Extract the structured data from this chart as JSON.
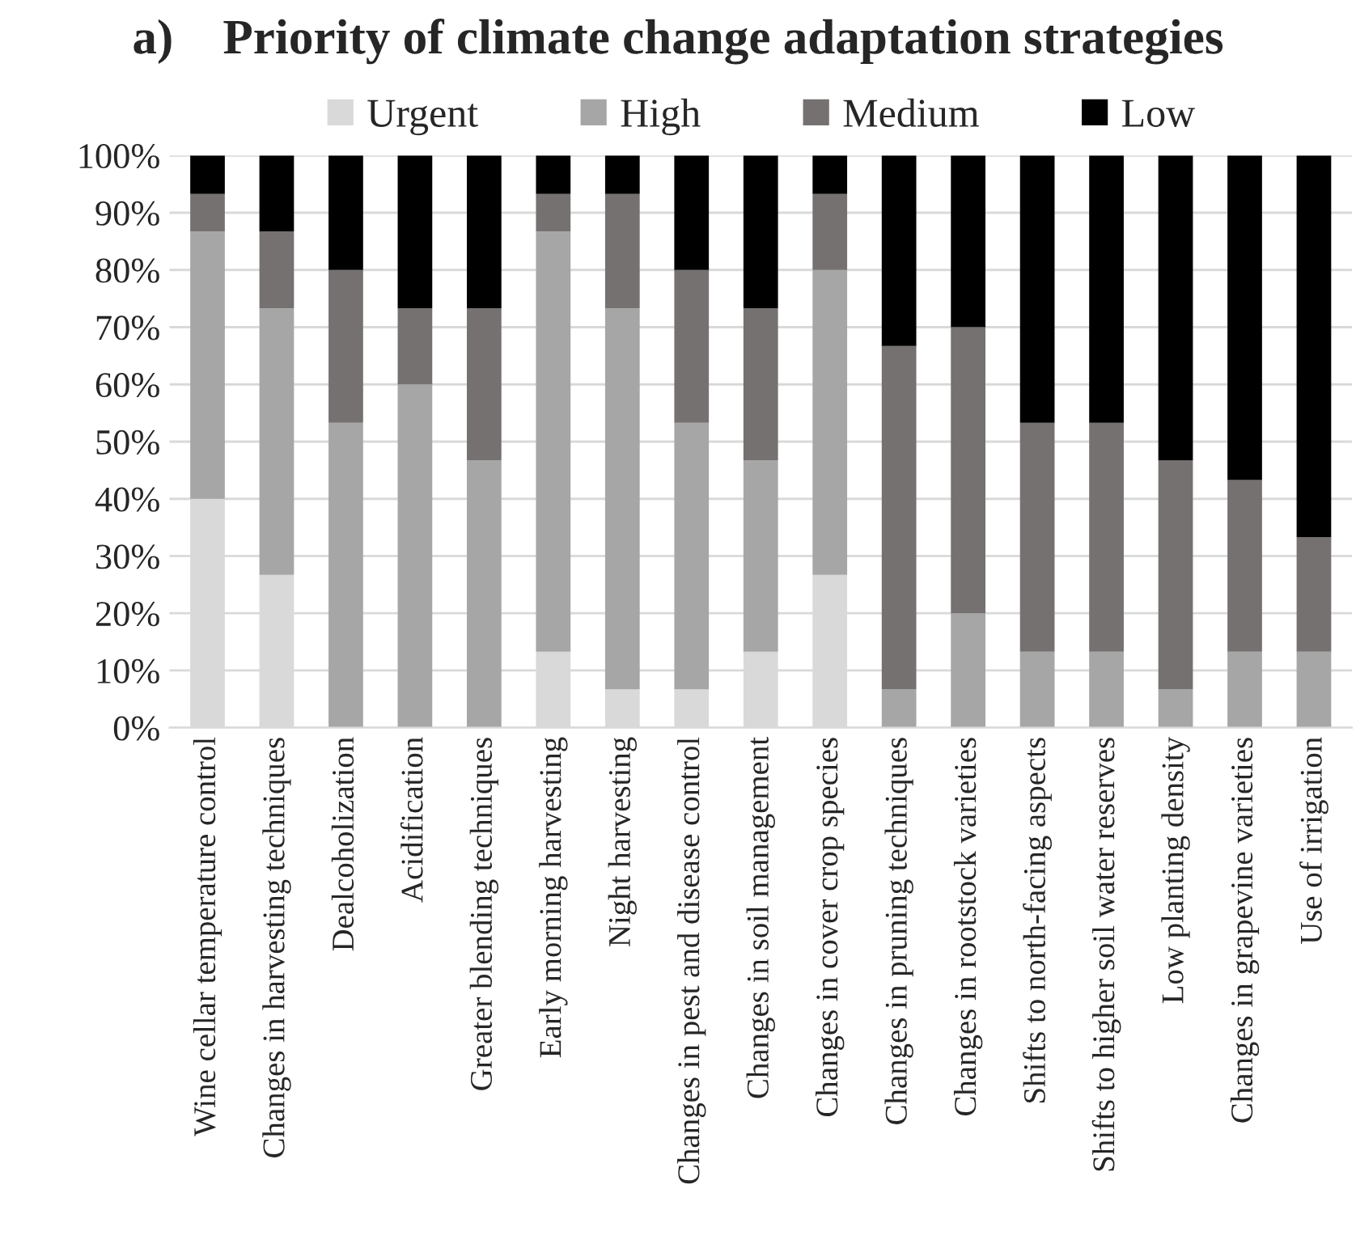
{
  "chart_data": {
    "type": "bar",
    "stacked": true,
    "title": "a)    Priority of climate change adaptation strategies",
    "categories": [
      "Wine cellar temperature control",
      "Changes in harvesting techniques",
      "Dealcoholization",
      "Acidification",
      "Greater blending techniques",
      "Early morning harvesting",
      "Night harvesting",
      "Changes in pest and disease control",
      "Changes in soil management",
      "Changes in cover crop species",
      "Changes in pruning techniques",
      "Changes in rootstock varieties",
      "Shifts to north-facing aspects",
      "Shifts to higher soil water reserves",
      "Low planting density",
      "Changes in grapevine varieties",
      "Use of irrigation"
    ],
    "series": [
      {
        "name": "Urgent",
        "color": "#d9d9d9",
        "values": [
          40,
          26.7,
          0,
          0,
          0,
          13.3,
          6.7,
          6.7,
          13.3,
          26.7,
          0,
          0,
          0,
          0,
          0,
          0,
          0
        ]
      },
      {
        "name": "High",
        "color": "#a6a6a6",
        "values": [
          46.7,
          46.6,
          53.3,
          60,
          46.7,
          73.4,
          66.6,
          46.6,
          33.4,
          53.3,
          6.7,
          20,
          13.3,
          13.3,
          6.7,
          13.3,
          13.3
        ]
      },
      {
        "name": "Medium",
        "color": "#767171",
        "values": [
          6.6,
          13.4,
          26.7,
          13.3,
          26.6,
          6.6,
          20,
          26.7,
          26.6,
          13.3,
          60,
          50,
          40,
          40,
          40,
          30,
          20
        ]
      },
      {
        "name": "Low",
        "color": "#000000",
        "values": [
          6.7,
          13.3,
          20,
          26.7,
          26.7,
          6.7,
          6.7,
          20,
          26.7,
          6.7,
          33.3,
          30,
          46.7,
          46.7,
          53.3,
          56.7,
          66.7
        ]
      }
    ],
    "ylim": [
      0,
      100
    ],
    "yticks": [
      {
        "value": 0,
        "label": "0%"
      },
      {
        "value": 10,
        "label": "10%"
      },
      {
        "value": 20,
        "label": "20%"
      },
      {
        "value": 30,
        "label": "30%"
      },
      {
        "value": 40,
        "label": "40%"
      },
      {
        "value": 50,
        "label": "50%"
      },
      {
        "value": 60,
        "label": "60%"
      },
      {
        "value": 70,
        "label": "70%"
      },
      {
        "value": 80,
        "label": "80%"
      },
      {
        "value": 90,
        "label": "90%"
      },
      {
        "value": 100,
        "label": "100%"
      }
    ],
    "grid": "y",
    "legend": "top"
  }
}
